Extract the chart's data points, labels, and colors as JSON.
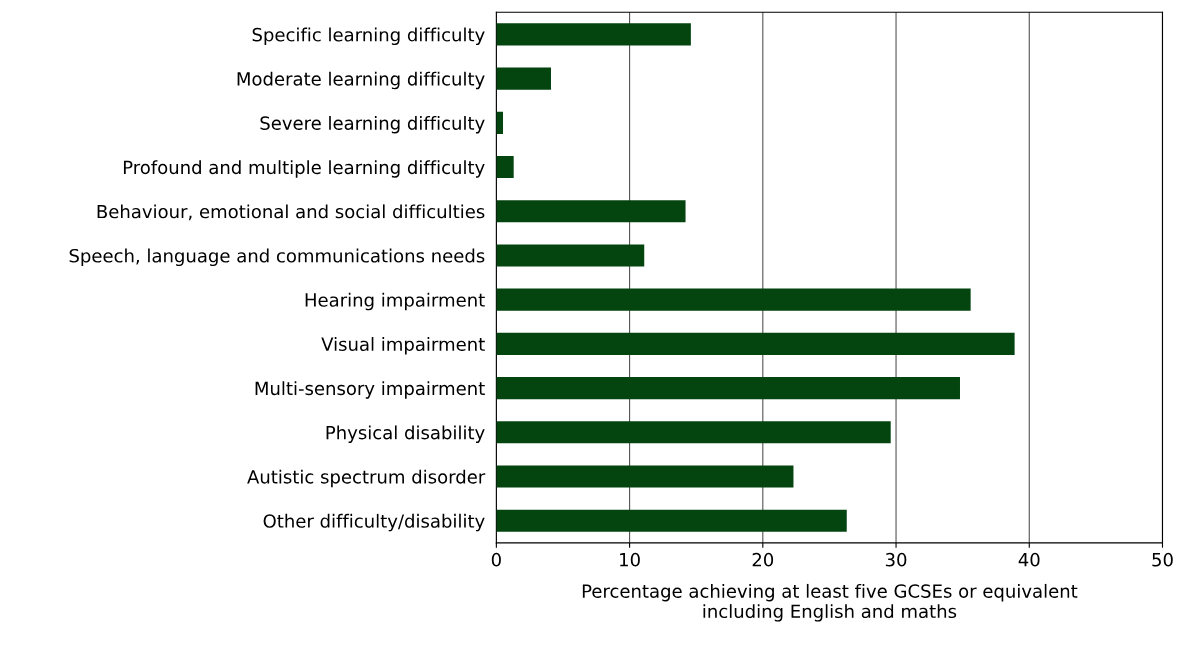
{
  "chart_data": {
    "type": "bar",
    "orientation": "horizontal",
    "xlabel": "Percentage achieving at least five GCSEs or equivalent\nincluding English and maths",
    "categories": [
      "Specific learning difficulty",
      "Moderate learning difficulty",
      "Severe learning difficulty",
      "Profound and multiple learning difficulty",
      "Behaviour, emotional and social difficulties",
      "Speech, language and communications needs",
      "Hearing impairment",
      "Visual impairment",
      "Multi-sensory impairment",
      "Physical disability",
      "Autistic spectrum disorder",
      "Other difficulty/disability"
    ],
    "values": [
      14.6,
      4.1,
      0.5,
      1.3,
      14.2,
      11.1,
      35.6,
      38.9,
      34.8,
      29.6,
      22.3,
      26.3
    ],
    "color": "#03440f",
    "xlim": [
      0,
      50
    ],
    "xticks": [
      0,
      10,
      20,
      30,
      40,
      50
    ],
    "grid": "x"
  }
}
